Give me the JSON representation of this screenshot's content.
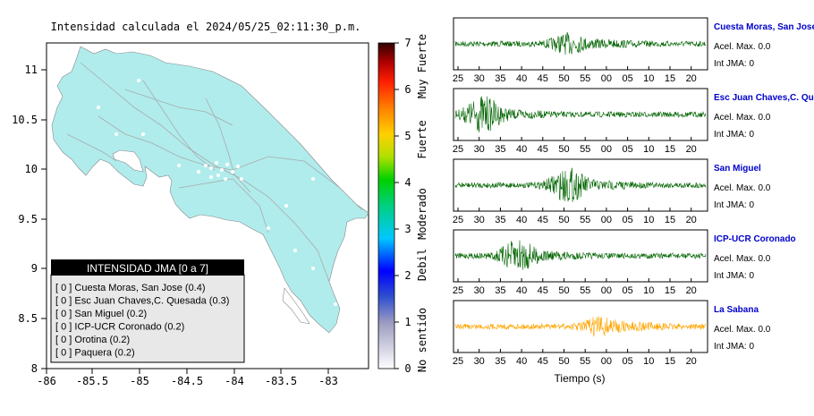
{
  "map": {
    "title": "Intensidad calculada el 2024/05/25_02:11:30_p.m.",
    "x_ticks": [
      "-86",
      "-85.5",
      "-85",
      "-84.5",
      "-84",
      "-83.5",
      "-83"
    ],
    "y_ticks": [
      "11",
      "10.5",
      "10",
      "9.5",
      "9",
      "8.5",
      "8"
    ],
    "land_color": "#b0ecec",
    "legend": {
      "title": "INTENSIDAD JMA [0 a 7]",
      "items": [
        "[ 0 ] Cuesta Moras, San Jose (0.4)",
        "[ 0 ] Esc Juan Chaves,C. Quesada (0.3)",
        "[ 0 ] San Miguel (0.2)",
        "[ 0 ] ICP-UCR Coronado (0.2)",
        "[ 0 ] Orotina (0.2)",
        "[ 0 ] Paquera (0.2)"
      ]
    }
  },
  "colorbar": {
    "ticks": [
      "7",
      "6",
      "5",
      "4",
      "3",
      "2",
      "1",
      "0"
    ],
    "labels": [
      "Muy Fuerte",
      "Fuerte",
      "Moderado",
      "Debil",
      "No sentido"
    ]
  },
  "waveforms": {
    "time_ticks": [
      "25",
      "30",
      "35",
      "40",
      "45",
      "50",
      "55",
      "00",
      "05",
      "10",
      "15",
      "20"
    ],
    "xlabel": "Tiempo (s)",
    "stations": [
      {
        "name": "Cuesta Moras, San Jose",
        "acel": "Acel. Max. 0.0",
        "int": "Int JMA: 0",
        "color": "#006400",
        "burst": 0.45,
        "amp": 0.35
      },
      {
        "name": "Esc Juan Chaves,C. Quesada",
        "acel": "Acel. Max. 0.0",
        "int": "Int JMA: 0",
        "color": "#006400",
        "burst": 0.11,
        "amp": 0.7
      },
      {
        "name": "San Miguel",
        "acel": "Acel. Max. 0.0",
        "int": "Int JMA: 0",
        "color": "#006400",
        "burst": 0.45,
        "amp": 0.65
      },
      {
        "name": "ICP-UCR Coronado",
        "acel": "Acel. Max. 0.0",
        "int": "Int JMA: 0",
        "color": "#006400",
        "burst": 0.25,
        "amp": 0.6
      },
      {
        "name": "La Sabana",
        "acel": "Acel. Max. 0.0",
        "int": "Int JMA: 0",
        "color": "#ffa500",
        "burst": 0.58,
        "amp": 0.35
      }
    ]
  }
}
